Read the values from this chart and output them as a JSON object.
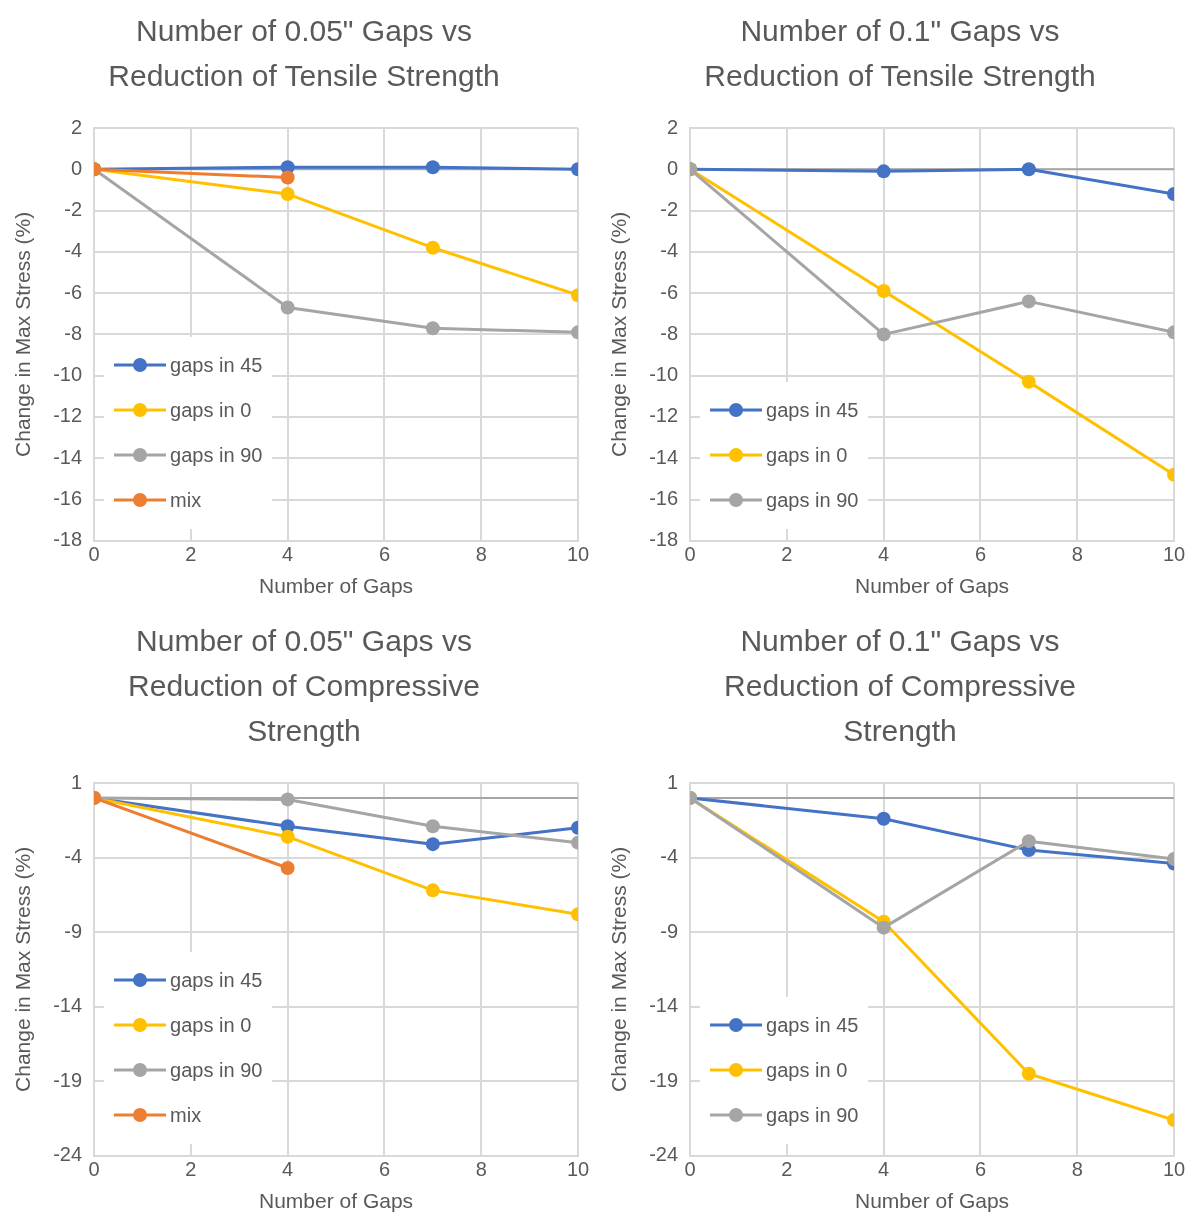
{
  "chart_data": [
    {
      "type": "line",
      "title": "Number of 0.05\" Gaps vs Reduction of Tensile Strength",
      "xlabel": "Number of Gaps",
      "ylabel": "Change in Max Stress (%)",
      "x": [
        0,
        4,
        7,
        10
      ],
      "xlim": [
        0,
        10
      ],
      "xticks": [
        0,
        2,
        4,
        6,
        8,
        10
      ],
      "ylim": [
        -18,
        2
      ],
      "yticks": [
        2,
        0,
        -2,
        -4,
        -6,
        -8,
        -10,
        -12,
        -14,
        -16,
        -18
      ],
      "grid": true,
      "legend": "bottom left",
      "marker": "circle",
      "line_style": "solid",
      "ref_lines": [
        {
          "axis": "y",
          "value": 0,
          "color": "#a6a6a6"
        }
      ],
      "series": [
        {
          "name": "gaps in 45",
          "color": "#4472c4",
          "values": [
            0,
            0.1,
            0.1,
            0
          ]
        },
        {
          "name": "gaps in 0",
          "color": "#ffc000",
          "values": [
            0,
            -1.2,
            -3.8,
            -6.1
          ]
        },
        {
          "name": "gaps in 90",
          "color": "#a5a5a5",
          "values": [
            0,
            -6.7,
            -7.7,
            -7.9
          ]
        },
        {
          "name": "mix",
          "color": "#ed7d31",
          "values": [
            0,
            -0.4,
            null,
            null
          ]
        }
      ]
    },
    {
      "type": "line",
      "title": "Number of 0.1\" Gaps vs Reduction of Tensile Strength",
      "xlabel": "Number of Gaps",
      "ylabel": "Change in Max Stress (%)",
      "x": [
        0,
        4,
        7,
        10
      ],
      "xlim": [
        0,
        10
      ],
      "xticks": [
        0,
        2,
        4,
        6,
        8,
        10
      ],
      "ylim": [
        -18,
        2
      ],
      "yticks": [
        2,
        0,
        -2,
        -4,
        -6,
        -8,
        -10,
        -12,
        -14,
        -16,
        -18
      ],
      "grid": true,
      "legend": "bottom left",
      "marker": "circle",
      "line_style": "solid",
      "ref_lines": [
        {
          "axis": "y",
          "value": 0,
          "color": "#a6a6a6"
        }
      ],
      "series": [
        {
          "name": "gaps in 45",
          "color": "#4472c4",
          "values": [
            0,
            -0.1,
            0,
            -1.2
          ]
        },
        {
          "name": "gaps in 0",
          "color": "#ffc000",
          "values": [
            0,
            -5.9,
            -10.3,
            -14.8
          ]
        },
        {
          "name": "gaps in 90",
          "color": "#a5a5a5",
          "values": [
            0,
            -8,
            -6.4,
            -7.9
          ]
        }
      ]
    },
    {
      "type": "line",
      "title": "Number of 0.05\" Gaps vs Reduction of Compressive Strength",
      "xlabel": "Number of Gaps",
      "ylabel": "Change in Max Stress (%)",
      "x": [
        0,
        4,
        7,
        10
      ],
      "xlim": [
        0,
        10
      ],
      "xticks": [
        0,
        2,
        4,
        6,
        8,
        10
      ],
      "ylim": [
        -24,
        1
      ],
      "yticks": [
        1,
        -4,
        -9,
        -14,
        -19,
        -24
      ],
      "grid": true,
      "legend": "bottom left",
      "marker": "circle",
      "line_style": "solid",
      "ref_lines": [
        {
          "axis": "y",
          "value": 0,
          "color": "#a6a6a6"
        }
      ],
      "series": [
        {
          "name": "gaps in 45",
          "color": "#4472c4",
          "values": [
            0,
            -1.9,
            -3.1,
            -2
          ]
        },
        {
          "name": "gaps in 0",
          "color": "#ffc000",
          "values": [
            0,
            -2.6,
            -6.2,
            -7.8
          ]
        },
        {
          "name": "gaps in 90",
          "color": "#a5a5a5",
          "values": [
            0,
            -0.1,
            -1.9,
            -3
          ]
        },
        {
          "name": "mix",
          "color": "#ed7d31",
          "values": [
            0,
            -4.7,
            null,
            null
          ]
        }
      ]
    },
    {
      "type": "line",
      "title": "Number of 0.1\" Gaps vs Reduction of Compressive Strength",
      "xlabel": "Number of Gaps",
      "ylabel": "Change in Max Stress (%)",
      "x": [
        0,
        4,
        7,
        10
      ],
      "xlim": [
        0,
        10
      ],
      "xticks": [
        0,
        2,
        4,
        6,
        8,
        10
      ],
      "ylim": [
        -24,
        1
      ],
      "yticks": [
        1,
        -4,
        -9,
        -14,
        -19,
        -24
      ],
      "grid": true,
      "legend": "bottom left",
      "marker": "circle",
      "line_style": "solid",
      "ref_lines": [
        {
          "axis": "y",
          "value": 0,
          "color": "#a6a6a6"
        }
      ],
      "series": [
        {
          "name": "gaps in 45",
          "color": "#4472c4",
          "values": [
            0,
            -1.4,
            -3.5,
            -4.4
          ]
        },
        {
          "name": "gaps in 0",
          "color": "#ffc000",
          "values": [
            0,
            -8.3,
            -18.5,
            -21.6
          ]
        },
        {
          "name": "gaps in 90",
          "color": "#a5a5a5",
          "values": [
            0,
            -8.7,
            -2.9,
            -4.1
          ]
        }
      ]
    }
  ]
}
